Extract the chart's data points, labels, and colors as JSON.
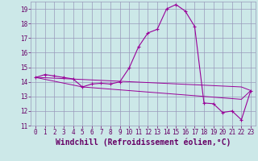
{
  "x": [
    0,
    1,
    2,
    3,
    4,
    5,
    6,
    7,
    8,
    9,
    10,
    11,
    12,
    13,
    14,
    15,
    16,
    17,
    18,
    19,
    20,
    21,
    22,
    23
  ],
  "y_main": [
    14.3,
    14.5,
    14.4,
    14.3,
    14.2,
    13.65,
    13.85,
    13.9,
    13.85,
    14.0,
    14.95,
    16.4,
    17.35,
    17.6,
    19.0,
    19.3,
    18.85,
    17.8,
    12.55,
    12.5,
    11.9,
    12.0,
    11.4,
    13.4
  ],
  "y_line2": [
    14.3,
    14.28,
    14.25,
    14.22,
    14.19,
    14.16,
    14.13,
    14.1,
    14.07,
    14.04,
    14.01,
    13.98,
    13.95,
    13.92,
    13.89,
    13.86,
    13.83,
    13.8,
    13.77,
    13.74,
    13.71,
    13.68,
    13.65,
    13.4
  ],
  "y_line3": [
    14.3,
    14.17,
    14.04,
    13.91,
    13.78,
    13.65,
    13.6,
    13.55,
    13.5,
    13.45,
    13.4,
    13.35,
    13.3,
    13.25,
    13.2,
    13.15,
    13.1,
    13.05,
    13.0,
    12.95,
    12.9,
    12.85,
    12.8,
    13.4
  ],
  "line_color": "#990099",
  "bg_color": "#cce8e8",
  "grid_color": "#9999bb",
  "xlabel": "Windchill (Refroidissement éolien,°C)",
  "ylim": [
    11,
    19.5
  ],
  "xlim": [
    -0.5,
    23.5
  ],
  "yticks": [
    11,
    12,
    13,
    14,
    15,
    16,
    17,
    18,
    19
  ],
  "xticks": [
    0,
    1,
    2,
    3,
    4,
    5,
    6,
    7,
    8,
    9,
    10,
    11,
    12,
    13,
    14,
    15,
    16,
    17,
    18,
    19,
    20,
    21,
    22,
    23
  ],
  "font_color": "#660066",
  "tick_fontsize": 5.5,
  "xlabel_fontsize": 7.0
}
